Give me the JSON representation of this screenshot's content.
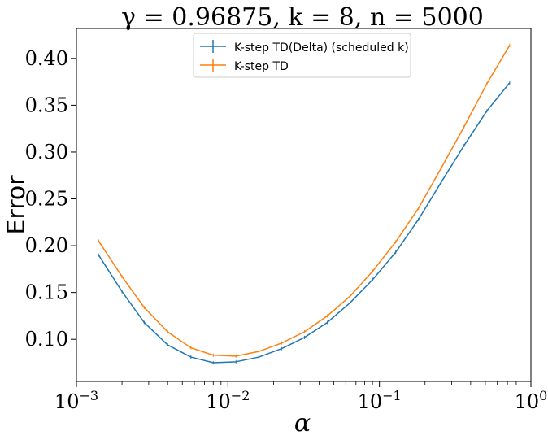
{
  "chart_data": {
    "type": "line",
    "title": "γ = 0.96875, k = 8, n = 5000",
    "xlabel": "α",
    "ylabel": "Error",
    "xscale": "log",
    "xlim": [
      0.001,
      1.0
    ],
    "ylim": [
      0.055,
      0.432
    ],
    "x_ticks": [
      {
        "value": 0.001,
        "label": "10",
        "exp": "−3"
      },
      {
        "value": 0.01,
        "label": "10",
        "exp": "−2"
      },
      {
        "value": 0.1,
        "label": "10",
        "exp": "−1"
      },
      {
        "value": 1.0,
        "label": "10",
        "exp": "0"
      }
    ],
    "y_ticks": [
      0.1,
      0.15,
      0.2,
      0.25,
      0.3,
      0.35,
      0.4
    ],
    "y_tick_labels": [
      "0.10",
      "0.15",
      "0.20",
      "0.25",
      "0.30",
      "0.35",
      "0.40"
    ],
    "grid": false,
    "legend_position": "top-center",
    "x": [
      0.0014,
      0.002,
      0.0028,
      0.004,
      0.0057,
      0.008,
      0.0113,
      0.016,
      0.0226,
      0.032,
      0.0453,
      0.064,
      0.0905,
      0.128,
      0.181,
      0.256,
      0.362,
      0.512,
      0.724
    ],
    "series": [
      {
        "name": "K-step TD(Delta) (scheduled k)",
        "color": "#1f77b4",
        "values": [
          0.19,
          0.151,
          0.118,
          0.094,
          0.081,
          0.075,
          0.076,
          0.081,
          0.09,
          0.102,
          0.118,
          0.139,
          0.164,
          0.193,
          0.228,
          0.268,
          0.307,
          0.344,
          0.374
        ]
      },
      {
        "name": "K-step TD",
        "color": "#ff7f0e",
        "values": [
          0.205,
          0.167,
          0.134,
          0.108,
          0.091,
          0.083,
          0.082,
          0.087,
          0.096,
          0.108,
          0.125,
          0.146,
          0.173,
          0.204,
          0.24,
          0.283,
          0.327,
          0.373,
          0.414
        ]
      }
    ]
  }
}
